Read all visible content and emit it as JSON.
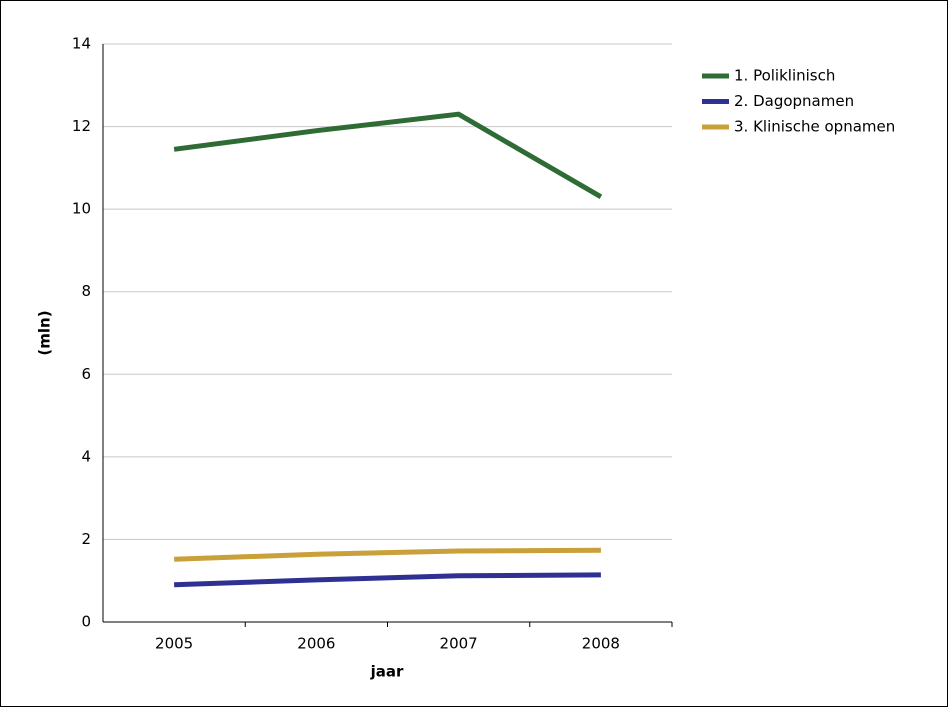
{
  "chart_data": {
    "type": "line",
    "x_label": "jaar",
    "y_label": "(mln)",
    "categories": [
      "2005",
      "2006",
      "2007",
      "2008"
    ],
    "series": [
      {
        "name": "1. Poliklinisch",
        "color": "#2e6b35",
        "values": [
          11.45,
          11.9,
          12.3,
          10.3
        ]
      },
      {
        "name": "2. Dagopnamen",
        "color": "#2e3192",
        "values": [
          0.9,
          1.02,
          1.12,
          1.14
        ]
      },
      {
        "name": "3. Klinische opnamen",
        "color": "#c9a03a",
        "values": [
          1.52,
          1.64,
          1.72,
          1.74
        ]
      }
    ],
    "ylim": [
      0,
      14
    ],
    "yticks": [
      0,
      2,
      4,
      6,
      8,
      10,
      12,
      14
    ],
    "grid": true,
    "legend": "right"
  }
}
